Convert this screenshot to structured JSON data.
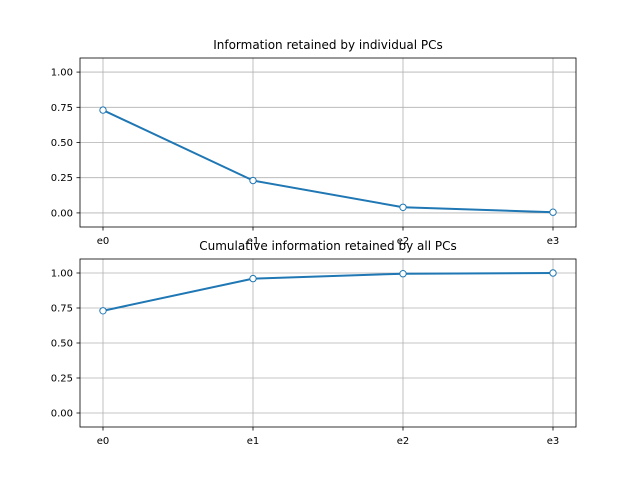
{
  "chart_data": [
    {
      "type": "line",
      "title": "Information retained by individual PCs",
      "xlabel": "",
      "ylabel": "",
      "categories": [
        "e0",
        "e1",
        "e2",
        "e3"
      ],
      "series": [
        {
          "values": [
            0.73,
            0.23,
            0.04,
            0.005
          ]
        }
      ],
      "ylim": [
        -0.1,
        1.1
      ],
      "yticks": [
        "0.00",
        "0.25",
        "0.50",
        "0.75",
        "1.00"
      ],
      "grid": true,
      "colors": {
        "line": "#1f77b4",
        "marker_face": "#ffffff"
      }
    },
    {
      "type": "line",
      "title": "Cumulative information retained by all PCs",
      "xlabel": "",
      "ylabel": "",
      "categories": [
        "e0",
        "e1",
        "e2",
        "e3"
      ],
      "series": [
        {
          "values": [
            0.73,
            0.96,
            0.995,
            1.0
          ]
        }
      ],
      "ylim": [
        -0.1,
        1.1
      ],
      "yticks": [
        "0.00",
        "0.25",
        "0.50",
        "0.75",
        "1.00"
      ],
      "grid": true,
      "colors": {
        "line": "#1f77b4",
        "marker_face": "#ffffff"
      }
    }
  ]
}
